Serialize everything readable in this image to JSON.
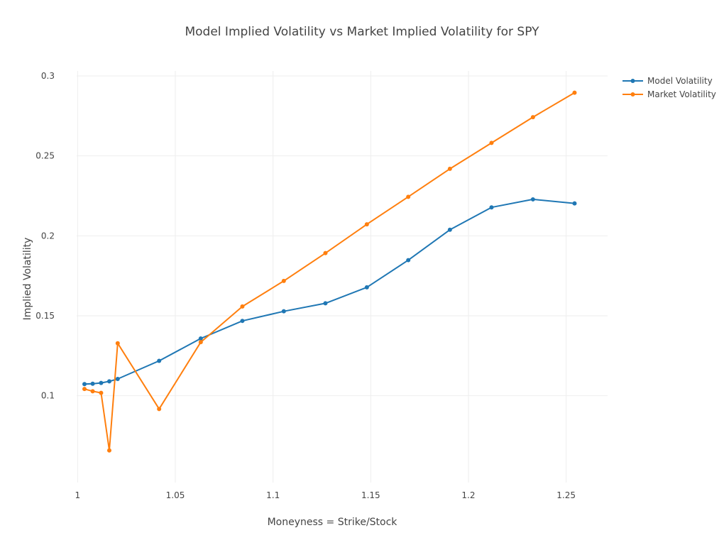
{
  "chart_data": {
    "type": "line",
    "title": "Model Implied Volatility vs Market Implied Volatility for SPY",
    "xlabel": "Moneyness = Strike/Stock",
    "ylabel": "Implied Volatility",
    "xlim": [
      0.9995,
      1.2712
    ],
    "ylim": [
      0.0457,
      0.3031
    ],
    "x_ticks": [
      1,
      1.05,
      1.1,
      1.15,
      1.2,
      1.25
    ],
    "x_tick_labels": [
      "1",
      "1.05",
      "1.1",
      "1.15",
      "1.2",
      "1.25"
    ],
    "y_ticks": [
      0.1,
      0.15,
      0.2,
      0.25,
      0.3
    ],
    "y_tick_labels": [
      "0.1",
      "0.15",
      "0.2",
      "0.25",
      "0.3"
    ],
    "grid": true,
    "legend_position": "top-right",
    "series": [
      {
        "name": "Model Volatility",
        "color": "#1f77b4",
        "x": [
          1.0035,
          1.0077,
          1.012,
          1.0162,
          1.0205,
          1.0417,
          1.063,
          1.0843,
          1.1055,
          1.1268,
          1.148,
          1.1692,
          1.1905,
          1.2118,
          1.233,
          1.2543
        ],
        "y": [
          0.1073,
          0.1075,
          0.108,
          0.109,
          0.1105,
          0.1218,
          0.1358,
          0.1468,
          0.1528,
          0.1578,
          0.1678,
          0.1848,
          0.2038,
          0.2178,
          0.2228,
          0.2203
        ]
      },
      {
        "name": "Market Volatility",
        "color": "#ff7f0e",
        "x": [
          1.0035,
          1.0077,
          1.012,
          1.0162,
          1.0205,
          1.0417,
          1.063,
          1.0843,
          1.1055,
          1.1268,
          1.148,
          1.1692,
          1.1905,
          1.2118,
          1.233,
          1.2543
        ],
        "y": [
          0.1042,
          0.1028,
          0.1018,
          0.0658,
          0.1328,
          0.0917,
          0.1335,
          0.1558,
          0.1718,
          0.1892,
          0.2072,
          0.2244,
          0.2419,
          0.2581,
          0.2742,
          0.2895
        ]
      }
    ]
  }
}
